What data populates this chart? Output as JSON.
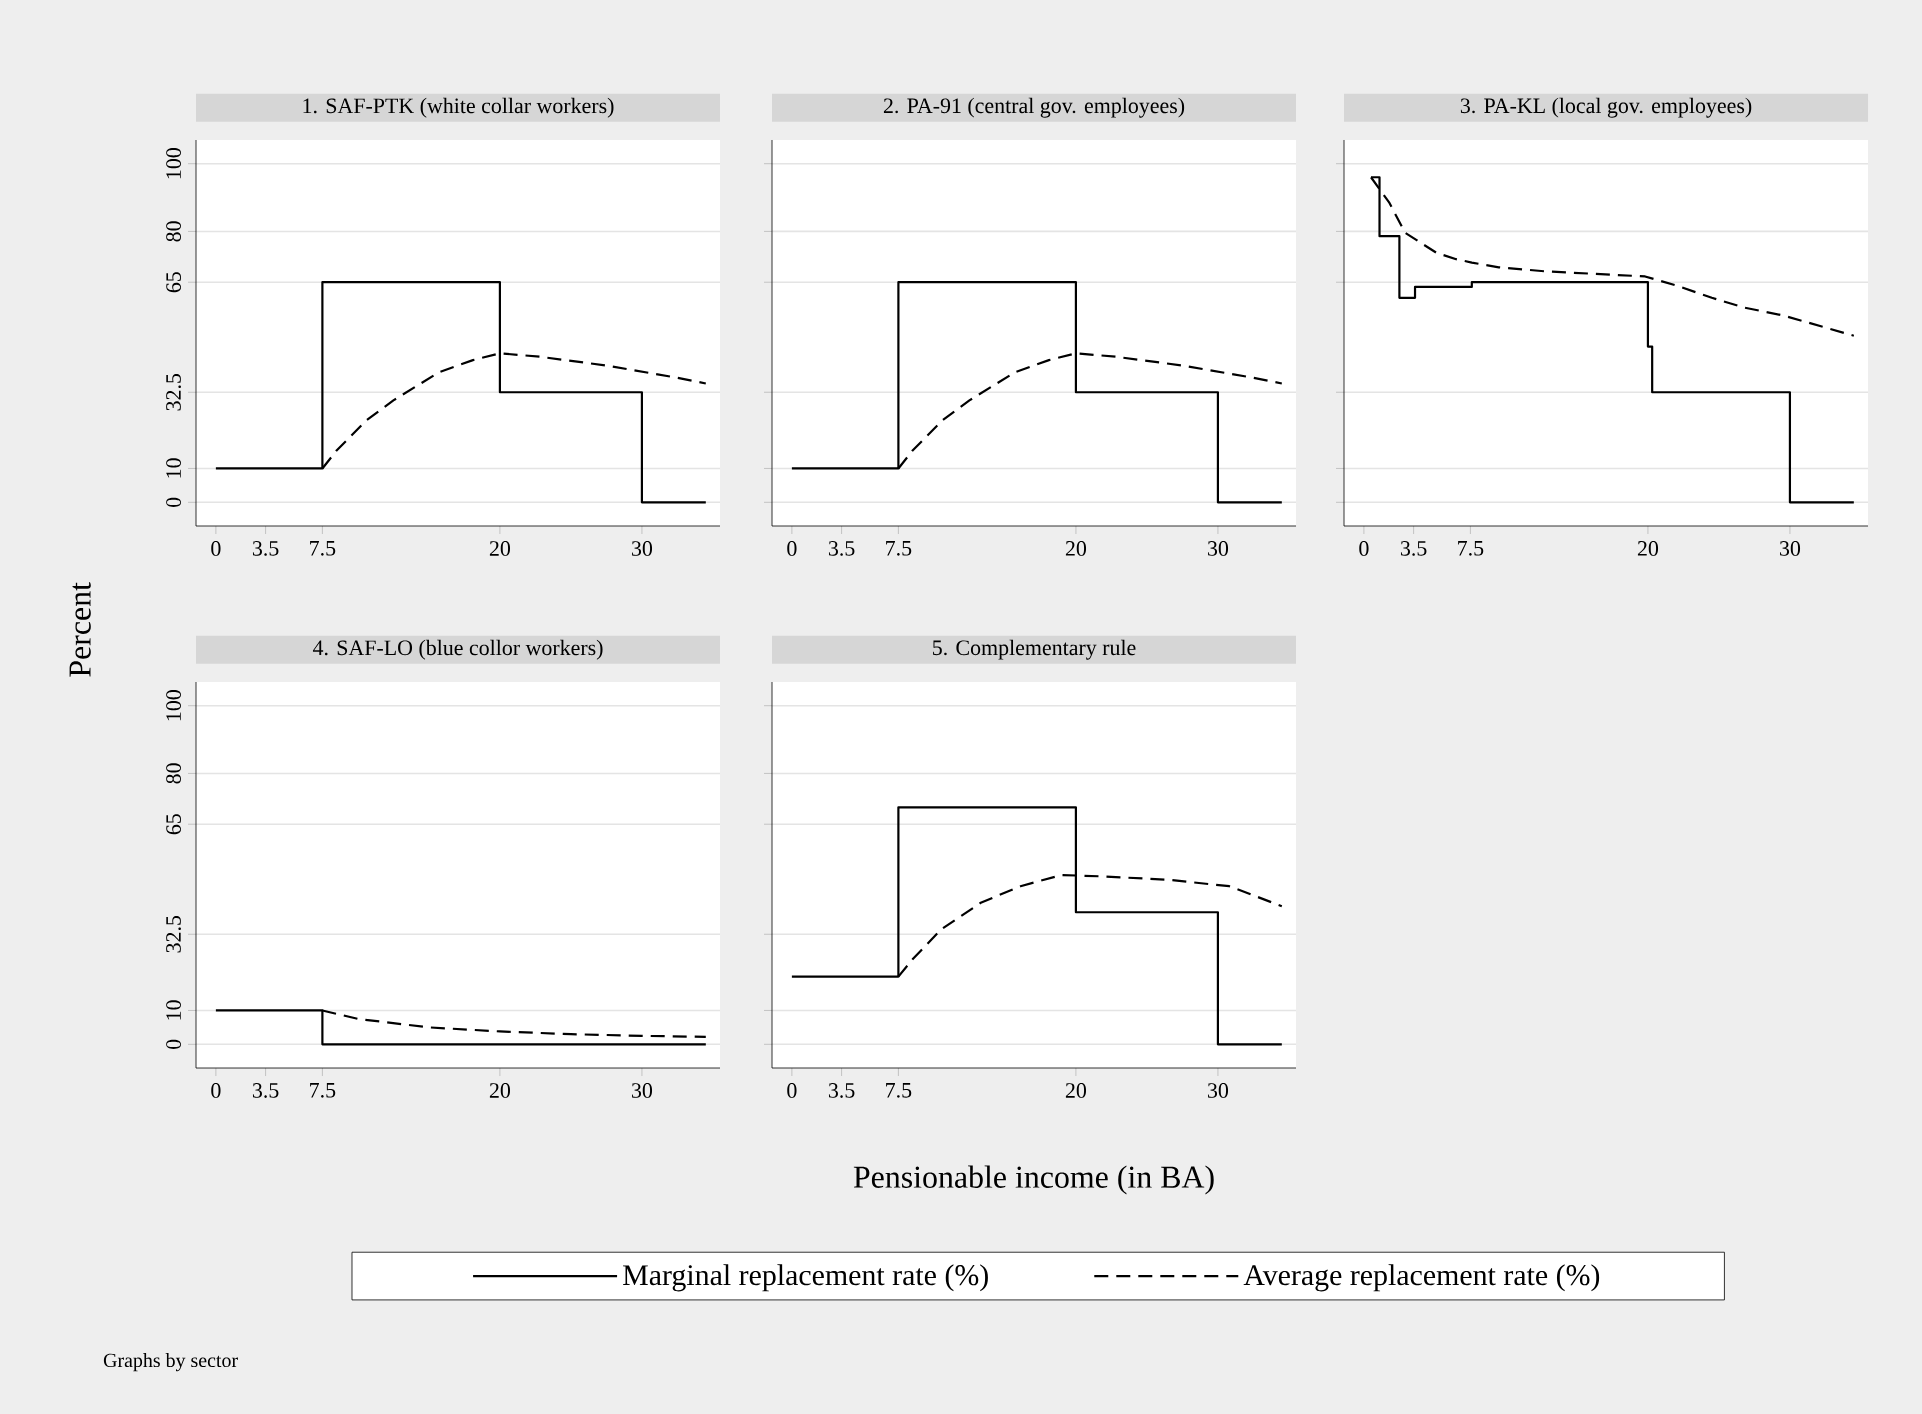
{
  "chart_data": [
    {
      "type": "line",
      "title": "1. SAF-PTK (white collar workers)",
      "ylabel": "Percent",
      "xlim": [
        -1.4,
        35.5
      ],
      "ylim": [
        -7,
        107
      ],
      "xticks": [
        0,
        3.5,
        7.5,
        20,
        30
      ],
      "yticks": [
        0,
        10,
        32.5,
        65,
        80,
        100
      ],
      "grid": "y",
      "series": [
        {
          "color": "#000000",
          "line_style": "solid",
          "x": [
            0,
            7.5,
            7.5,
            20,
            20,
            30,
            30,
            34.5
          ],
          "values": [
            10,
            10,
            65,
            65,
            32.5,
            32.5,
            0,
            0
          ]
        },
        {
          "color": "#000000",
          "line_style": "dashed",
          "x": [
            7.5,
            8.5,
            10.6,
            12.5,
            15.7,
            18.1,
            20,
            22.8,
            27.5,
            32.2,
            34.5
          ],
          "values": [
            10,
            15.3,
            24.2,
            30.1,
            38.4,
            42,
            44,
            43,
            40.4,
            37,
            35.1
          ]
        }
      ]
    },
    {
      "type": "line",
      "title": "2. PA-91 (central gov. employees)",
      "xlim": [
        -1.4,
        35.5
      ],
      "ylim": [
        -7,
        107
      ],
      "xticks": [
        0,
        3.5,
        7.5,
        20,
        30
      ],
      "yticks": [
        0,
        10,
        32.5,
        65,
        80,
        100
      ],
      "grid": "y",
      "tick_labels": "x",
      "series": [
        {
          "color": "#000000",
          "line_style": "solid",
          "x": [
            0,
            7.5,
            7.5,
            20,
            20,
            30,
            30,
            34.5
          ],
          "values": [
            10,
            10,
            65,
            65,
            32.5,
            32.5,
            0,
            0
          ]
        },
        {
          "color": "#000000",
          "line_style": "dashed",
          "x": [
            7.5,
            8.5,
            10.6,
            12.5,
            15.7,
            18.1,
            20,
            22.8,
            27.5,
            32.2,
            34.5
          ],
          "values": [
            10,
            15.3,
            24.2,
            30.1,
            38.4,
            42,
            44,
            43,
            40.4,
            37,
            35.1
          ]
        }
      ]
    },
    {
      "type": "line",
      "title": "3. PA-KL (local gov. employees)",
      "xlim": [
        -1.4,
        35.5
      ],
      "ylim": [
        -7,
        107
      ],
      "xticks": [
        0,
        3.5,
        7.5,
        20,
        30
      ],
      "yticks": [
        0,
        10,
        32.5,
        65,
        80,
        100
      ],
      "grid": "y",
      "tick_labels": "x",
      "series": [
        {
          "color": "#000000",
          "line_style": "solid",
          "x": [
            0.5,
            1.1,
            1.1,
            2.5,
            2.5,
            3.6,
            3.6,
            7.6,
            7.6,
            20,
            20,
            20.3,
            20.3,
            30,
            30,
            34.5
          ],
          "values": [
            96,
            96,
            78.6,
            78.6,
            60.4,
            60.4,
            63.6,
            63.6,
            65,
            65,
            46,
            46,
            32.5,
            32.5,
            0,
            0
          ]
        },
        {
          "color": "#000000",
          "line_style": "dashed",
          "x": [
            0.5,
            1.8,
            2.9,
            5.1,
            6.5,
            7.6,
            9.5,
            12.8,
            16.1,
            19.8,
            22.1,
            24.5,
            26.8,
            29.6,
            34.5
          ],
          "values": [
            96,
            88.4,
            79.6,
            73.7,
            71.8,
            70.8,
            69.4,
            68.2,
            67.5,
            66.7,
            63.9,
            60.4,
            57.5,
            55.1,
            49.2
          ]
        }
      ]
    },
    {
      "type": "line",
      "title": "4. SAF-LO (blue collor workers)",
      "xlim": [
        -1.4,
        35.5
      ],
      "ylim": [
        -7,
        107
      ],
      "xticks": [
        0,
        3.5,
        7.5,
        20,
        30
      ],
      "yticks": [
        0,
        10,
        32.5,
        65,
        80,
        100
      ],
      "grid": "y",
      "series": [
        {
          "color": "#000000",
          "line_style": "solid",
          "x": [
            0,
            7.5,
            7.5,
            34.5
          ],
          "values": [
            10,
            10,
            0,
            0
          ]
        },
        {
          "color": "#000000",
          "line_style": "dashed",
          "x": [
            7.5,
            10,
            15,
            20,
            25,
            30,
            34.5
          ],
          "values": [
            10,
            7.5,
            5,
            3.8,
            3,
            2.5,
            2.2
          ]
        }
      ]
    },
    {
      "type": "line",
      "title": "5. Complementary rule",
      "xlabel": "Pensionable income (in BA)",
      "xlim": [
        -1.4,
        35.5
      ],
      "ylim": [
        -7,
        107
      ],
      "xticks": [
        0,
        3.5,
        7.5,
        20,
        30
      ],
      "yticks": [
        0,
        10,
        32.5,
        65,
        80,
        100
      ],
      "grid": "y",
      "tick_labels": "x",
      "legend": "bottom",
      "annotations": [
        "Graphs by sector"
      ],
      "series": [
        {
          "name": "Marginal replacement rate (%)",
          "color": "#000000",
          "line_style": "solid",
          "x": [
            0,
            7.5,
            7.5,
            20,
            20,
            30,
            30,
            34.5
          ],
          "values": [
            20,
            20,
            70,
            70,
            39,
            39,
            0,
            0
          ]
        },
        {
          "name": "Average replacement rate (%)",
          "color": "#000000",
          "line_style": "dashed",
          "x": [
            7.5,
            8.5,
            10.5,
            13.3,
            16.1,
            19,
            21.8,
            26.5,
            30.8,
            34.5
          ],
          "values": [
            20,
            25.1,
            33.9,
            41.8,
            46.7,
            50,
            49.6,
            48.6,
            46.7,
            40.8
          ]
        }
      ]
    }
  ]
}
